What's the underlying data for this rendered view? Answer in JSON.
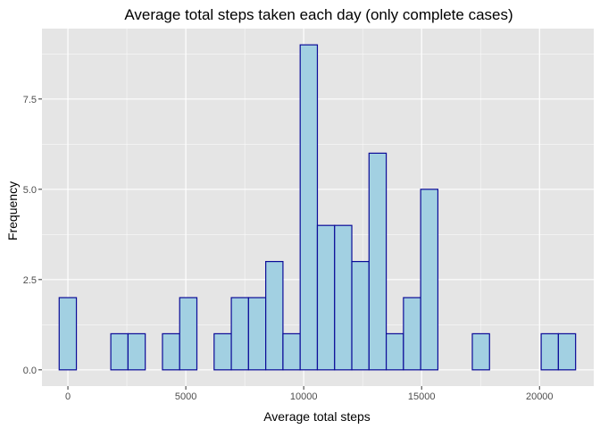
{
  "chart_data": {
    "type": "bar",
    "title": "Average total steps taken each day (only complete cases)",
    "xlabel": "Average total steps",
    "ylabel": "Frequency",
    "xlim": [
      -1100,
      22300
    ],
    "ylim": [
      -0.45,
      9.45
    ],
    "x_ticks": [
      0,
      5000,
      10000,
      15000,
      20000
    ],
    "x_tick_labels": [
      "0",
      "5000",
      "10000",
      "15000",
      "20000"
    ],
    "y_ticks": [
      0,
      2.5,
      5,
      7.5
    ],
    "y_tick_labels": [
      "0.0",
      "2.5",
      "5.0",
      "7.5"
    ],
    "bin_start": -370,
    "bin_width": 730,
    "values": [
      2,
      0,
      0,
      1,
      1,
      0,
      1,
      2,
      0,
      1,
      2,
      2,
      3,
      1,
      9,
      4,
      4,
      3,
      6,
      1,
      2,
      5,
      0,
      0,
      1,
      0,
      0,
      0,
      1,
      1
    ],
    "grid": true,
    "colors": {
      "panel_background": "#e5e5e5",
      "grid_major": "#ffffff",
      "bar_fill": "#a2d0e2",
      "bar_outline": "#0b0b98",
      "tick_mark": "#333333"
    }
  }
}
